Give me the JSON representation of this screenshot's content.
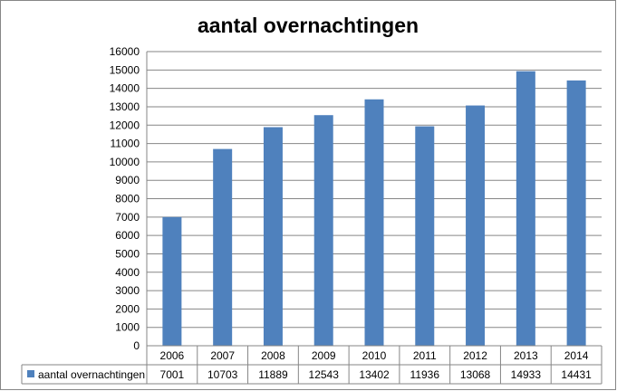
{
  "chart_data": {
    "type": "bar",
    "title": "aantal overnachtingen",
    "categories": [
      "2006",
      "2007",
      "2008",
      "2009",
      "2010",
      "2011",
      "2012",
      "2013",
      "2014"
    ],
    "series": [
      {
        "name": "aantal overnachtingen",
        "values": [
          7001,
          10703,
          11889,
          12543,
          13402,
          11936,
          13068,
          14933,
          14431
        ],
        "value_labels": [
          "7001",
          "10703",
          "11889",
          "12543",
          "13402",
          "11936",
          "13068",
          "14933",
          "14431"
        ],
        "color": "#4F81BD"
      }
    ],
    "ylim": [
      0,
      16000
    ],
    "yticks": [
      "0",
      "1000",
      "2000",
      "3000",
      "4000",
      "5000",
      "6000",
      "7000",
      "8000",
      "9000",
      "10000",
      "11000",
      "12000",
      "13000",
      "14000",
      "15000",
      "16000"
    ],
    "grid": true,
    "legend": "data-table",
    "data_table": true
  }
}
